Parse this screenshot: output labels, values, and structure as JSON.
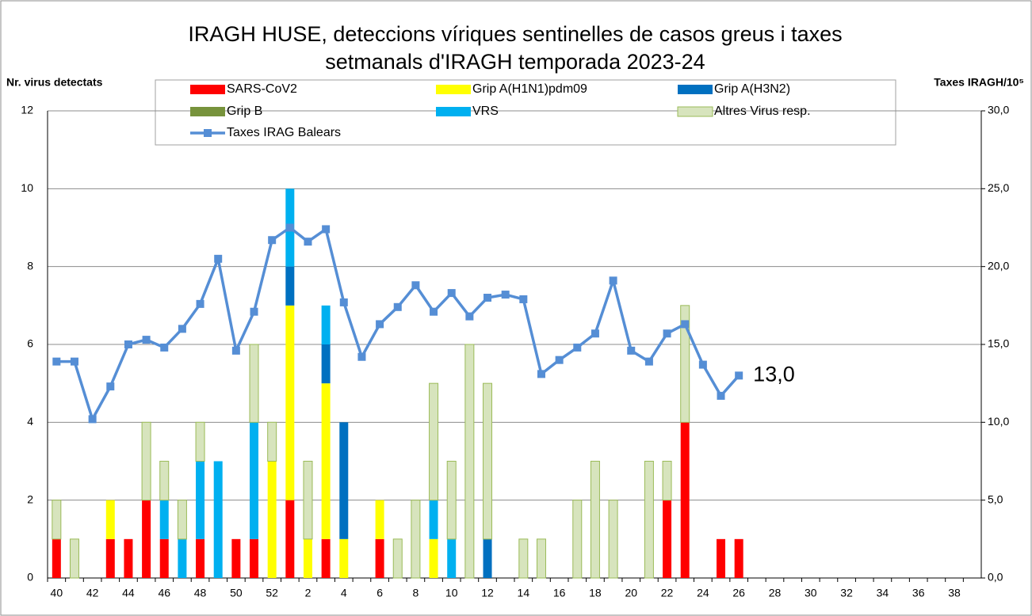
{
  "chart_data": {
    "type": "bar",
    "stacked": true,
    "title": [
      "IRAGH  HUSE, deteccions víriques sentinelles de casos greus i taxes",
      "setmanals d'IRAGH temporada 2023-24"
    ],
    "ylabel": "Nr. virus detectats",
    "y2label": "Taxes IRAGH/10⁵",
    "categories": [
      "40",
      null,
      "42",
      null,
      "44",
      null,
      "46",
      null,
      "48",
      null,
      "50",
      null,
      "52",
      null,
      "2",
      null,
      "4",
      null,
      "6",
      null,
      "8",
      null,
      "10",
      null,
      "12",
      null,
      "14",
      null,
      "16",
      null,
      "18",
      null,
      "20",
      null,
      "22",
      null,
      "24",
      null,
      "26",
      null,
      "28",
      null,
      "30",
      null,
      "32",
      null,
      "34",
      null,
      "36",
      null,
      "38",
      null
    ],
    "series": [
      {
        "name": "SARS-CoV2",
        "color": "#ff0000",
        "values": [
          1,
          0,
          0,
          1,
          1,
          2,
          1,
          0,
          1,
          0,
          1,
          1,
          0,
          2,
          0,
          1,
          0,
          0,
          1,
          0,
          0,
          0,
          0,
          0,
          0,
          0,
          0,
          0,
          0,
          0,
          0,
          0,
          0,
          0,
          2,
          4,
          0,
          1,
          1,
          0,
          0,
          0,
          0,
          0,
          0,
          0,
          0,
          0,
          0,
          0,
          0,
          0
        ]
      },
      {
        "name": "Grip A(H1N1)pdm09",
        "color": "#ffff00",
        "values": [
          0,
          0,
          0,
          1,
          0,
          0,
          0,
          0,
          0,
          0,
          0,
          0,
          3,
          5,
          1,
          4,
          1,
          0,
          1,
          0,
          0,
          1,
          0,
          0,
          0,
          0,
          0,
          0,
          0,
          0,
          0,
          0,
          0,
          0,
          0,
          0,
          0,
          0,
          0,
          0,
          0,
          0,
          0,
          0,
          0,
          0,
          0,
          0,
          0,
          0,
          0,
          0
        ]
      },
      {
        "name": "Grip A(H3N2)",
        "color": "#0070c0",
        "values": [
          0,
          0,
          0,
          0,
          0,
          0,
          0,
          0,
          0,
          0,
          0,
          0,
          0,
          1,
          0,
          1,
          3,
          0,
          0,
          0,
          0,
          0,
          0,
          0,
          1,
          0,
          0,
          0,
          0,
          0,
          0,
          0,
          0,
          0,
          0,
          0,
          0,
          0,
          0,
          0,
          0,
          0,
          0,
          0,
          0,
          0,
          0,
          0,
          0,
          0,
          0,
          0
        ]
      },
      {
        "name": "Grip B",
        "color": "#77933c",
        "values": [
          0,
          0,
          0,
          0,
          0,
          0,
          0,
          0,
          0,
          0,
          0,
          0,
          0,
          0,
          0,
          0,
          0,
          0,
          0,
          0,
          0,
          0,
          0,
          0,
          0,
          0,
          0,
          0,
          0,
          0,
          0,
          0,
          0,
          0,
          0,
          0,
          0,
          0,
          0,
          0,
          0,
          0,
          0,
          0,
          0,
          0,
          0,
          0,
          0,
          0,
          0,
          0
        ]
      },
      {
        "name": "VRS",
        "color": "#00b0f0",
        "values": [
          0,
          0,
          0,
          0,
          0,
          0,
          1,
          1,
          2,
          3,
          0,
          3,
          0,
          2,
          0,
          1,
          0,
          0,
          0,
          0,
          0,
          1,
          1,
          0,
          0,
          0,
          0,
          0,
          0,
          0,
          0,
          0,
          0,
          0,
          0,
          0,
          0,
          0,
          0,
          0,
          0,
          0,
          0,
          0,
          0,
          0,
          0,
          0,
          0,
          0,
          0,
          0
        ]
      },
      {
        "name": "Altres Virus resp.",
        "color": "#d7e4bd",
        "edgecolor": "#9bbb59",
        "values": [
          1,
          1,
          0,
          0,
          0,
          2,
          1,
          1,
          1,
          0,
          0,
          2,
          1,
          0,
          2,
          0,
          0,
          0,
          0,
          1,
          2,
          3,
          2,
          6,
          4,
          0,
          1,
          1,
          0,
          2,
          3,
          2,
          0,
          3,
          1,
          3,
          0,
          0,
          0,
          0,
          0,
          0,
          0,
          0,
          0,
          0,
          0,
          0,
          0,
          0,
          0,
          0
        ]
      },
      {
        "name": "Taxes IRAG Balears",
        "color": "#558ed5",
        "type": "line",
        "axis": "y2",
        "values": [
          13.9,
          13.9,
          10.2,
          12.3,
          15.0,
          15.3,
          14.8,
          16.0,
          17.6,
          20.5,
          14.6,
          17.1,
          21.7,
          22.5,
          21.6,
          22.4,
          17.7,
          14.2,
          16.3,
          17.4,
          18.8,
          17.1,
          18.3,
          16.8,
          18.0,
          18.2,
          17.9,
          13.1,
          14.0,
          14.8,
          15.7,
          19.1,
          14.6,
          13.9,
          15.7,
          16.3,
          13.7,
          11.7,
          13.0,
          null,
          null,
          null,
          null,
          null,
          null,
          null,
          null,
          null,
          null,
          null,
          null,
          null
        ],
        "value_labels": [
          null,
          null,
          null,
          null,
          null,
          null,
          null,
          null,
          null,
          null,
          null,
          null,
          null,
          null,
          null,
          null,
          null,
          null,
          null,
          null,
          null,
          null,
          null,
          null,
          null,
          null,
          null,
          null,
          null,
          null,
          null,
          null,
          null,
          null,
          null,
          null,
          null,
          null,
          "13,0",
          null,
          null,
          null,
          null,
          null,
          null,
          null,
          null,
          null,
          null,
          null,
          null,
          null
        ]
      }
    ],
    "ylim": [
      0,
      12
    ],
    "yticks": [
      0,
      2,
      4,
      6,
      8,
      10,
      12
    ],
    "y2lim": [
      0,
      30
    ],
    "y2ticks": [
      {
        "value": 0,
        "label": "0,0"
      },
      {
        "value": 5,
        "label": "5,0"
      },
      {
        "value": 10,
        "label": "10,0"
      },
      {
        "value": 15,
        "label": "15,0"
      },
      {
        "value": 20,
        "label": "20,0"
      },
      {
        "value": 25,
        "label": "25,0"
      },
      {
        "value": 30,
        "label": "30,0"
      }
    ],
    "grid": true
  }
}
